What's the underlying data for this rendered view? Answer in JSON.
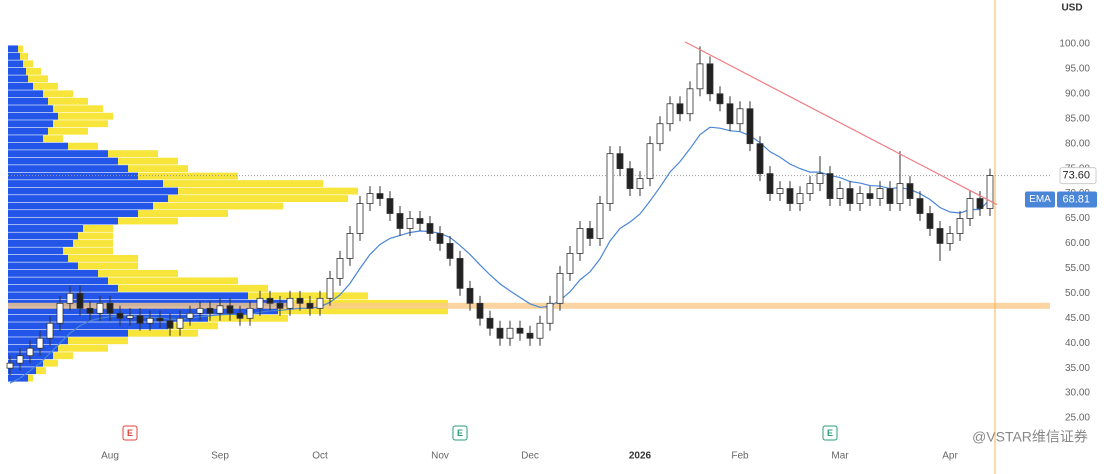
{
  "chart_data": {
    "type": "candlestick",
    "currency": "USD",
    "watermark": "@VSTAR维信证券",
    "categories": [
      null,
      null,
      null,
      null,
      null,
      null,
      null,
      null,
      null,
      null,
      "Aug",
      null,
      null,
      null,
      null,
      null,
      null,
      null,
      null,
      null,
      null,
      "Sep",
      null,
      null,
      null,
      null,
      null,
      null,
      null,
      null,
      null,
      "Oct",
      null,
      null,
      null,
      null,
      null,
      null,
      null,
      null,
      null,
      null,
      null,
      "Nov",
      null,
      null,
      null,
      null,
      null,
      null,
      null,
      null,
      "Dec",
      null,
      null,
      null,
      null,
      null,
      null,
      null,
      null,
      null,
      null,
      "2026",
      null,
      null,
      null,
      null,
      null,
      null,
      null,
      null,
      null,
      "Feb",
      null,
      null,
      null,
      null,
      null,
      null,
      null,
      null,
      null,
      "Mar",
      null,
      null,
      null,
      null,
      null,
      null,
      null,
      null,
      null,
      null,
      "Apr",
      null,
      null,
      null,
      null
    ],
    "open": [
      35,
      36,
      37.5,
      39,
      41,
      44,
      48,
      50,
      47,
      46,
      48,
      46,
      45,
      45.5,
      44,
      45,
      44.5,
      43,
      45,
      46,
      47,
      46,
      47.5,
      46,
      45,
      47,
      49,
      48,
      47,
      49,
      48,
      47,
      49,
      53,
      57,
      62,
      68,
      70,
      69,
      66,
      63,
      65,
      64,
      62,
      60,
      57,
      51,
      48,
      45,
      43,
      41,
      43,
      42,
      41,
      44,
      48,
      54,
      58,
      63,
      61,
      68,
      78,
      75,
      71,
      73,
      80,
      84,
      88,
      86,
      91,
      96,
      90,
      88,
      84,
      87,
      80,
      74,
      70,
      71,
      68,
      70,
      72,
      74,
      69,
      71,
      68,
      70,
      69,
      71,
      68,
      72,
      69,
      66,
      63,
      60,
      62,
      65,
      69,
      67
    ],
    "high": [
      37.5,
      39,
      40.5,
      42.5,
      45.5,
      49.5,
      51.5,
      51.5,
      48.5,
      49.5,
      49.5,
      47.5,
      47,
      47,
      46.5,
      46.5,
      46,
      46.5,
      47.5,
      48.5,
      48.5,
      49,
      49,
      47.5,
      48.5,
      50.5,
      50.5,
      49.5,
      50.5,
      50.5,
      49.5,
      50.5,
      54.5,
      58.5,
      63.5,
      69.5,
      71.5,
      71.5,
      70.5,
      67.5,
      66.5,
      66.5,
      65.5,
      63.5,
      61.5,
      58.5,
      52.5,
      49.5,
      46.5,
      44.5,
      44.5,
      44.5,
      43.5,
      45.5,
      49.5,
      55.5,
      59.5,
      64.5,
      64.5,
      69.5,
      79.5,
      79.5,
      76.5,
      74.5,
      81.5,
      85.5,
      89.5,
      89.5,
      92.5,
      99.5,
      97.5,
      91.5,
      89.5,
      88.5,
      88.5,
      81.5,
      75.5,
      72.5,
      72.5,
      71.5,
      73.5,
      77.5,
      75.5,
      72.5,
      72.5,
      71.5,
      71.5,
      72.5,
      72.5,
      78.5,
      73.5,
      70.5,
      67.5,
      64.5,
      63.5,
      66.5,
      70.5,
      70.5,
      75
    ],
    "low": [
      33.5,
      34.5,
      36,
      37.5,
      39.5,
      42.5,
      46.5,
      45.5,
      44.5,
      44.5,
      44.5,
      43.5,
      43.5,
      42.5,
      42.5,
      43,
      41.5,
      41.5,
      43.5,
      44.5,
      44.5,
      44.5,
      44.5,
      43.5,
      43.5,
      45.5,
      46.5,
      45.5,
      45.5,
      46.5,
      45.5,
      45.5,
      47.5,
      51.5,
      55.5,
      60.5,
      66.5,
      67.5,
      64.5,
      61.5,
      61.5,
      62.5,
      60.5,
      58.5,
      55.5,
      49.5,
      46.5,
      43.5,
      41.5,
      39.5,
      39.5,
      40.5,
      39.5,
      39.5,
      42.5,
      46.5,
      52.5,
      56.5,
      59.5,
      59.5,
      66.5,
      73.5,
      69.5,
      69.5,
      71.5,
      78.5,
      82.5,
      84.5,
      84.5,
      89.5,
      88.5,
      86.5,
      82.5,
      82.5,
      78.5,
      72.5,
      68.5,
      68.5,
      66.5,
      66.5,
      68.5,
      70.5,
      67.5,
      67.5,
      66.5,
      66.5,
      67.5,
      67.5,
      66.5,
      66.5,
      67.5,
      64.5,
      61.5,
      56.5,
      58.5,
      60.5,
      63.5,
      65.5,
      65.5
    ],
    "close": [
      36,
      37.5,
      39,
      41,
      44,
      48,
      50,
      47,
      46,
      48,
      46,
      45,
      45.5,
      44,
      45,
      44.5,
      43,
      45,
      46,
      47,
      46,
      47.5,
      46,
      45,
      47,
      49,
      48,
      47,
      49,
      48,
      47,
      49,
      53,
      57,
      62,
      68,
      70,
      69,
      66,
      63,
      65,
      64,
      62,
      60,
      57,
      51,
      48,
      45,
      43,
      41,
      43,
      42,
      41,
      44,
      48,
      54,
      58,
      63,
      61,
      68,
      78,
      75,
      71,
      73,
      80,
      84,
      88,
      86,
      91,
      96,
      90,
      88,
      84,
      87,
      80,
      74,
      70,
      71,
      68,
      70,
      72,
      74,
      69,
      71,
      68,
      70,
      69,
      71,
      68,
      72,
      69,
      66,
      63,
      60,
      62,
      65,
      69,
      67,
      73.6
    ],
    "last_price_label": "73.60",
    "up_color": "#ffffff",
    "down_color": "#222222",
    "wick_color": "#333333",
    "ema": {
      "name": "EMA",
      "color": "#4a86d8",
      "values": [
        32,
        33,
        34.5,
        36,
        38,
        40,
        42,
        43.5,
        44.5,
        45,
        45.3,
        45.5,
        45.5,
        45.3,
        45.2,
        45.1,
        44.8,
        44.8,
        45,
        45.3,
        45.5,
        45.7,
        45.8,
        45.7,
        45.8,
        46.2,
        46.5,
        46.6,
        46.8,
        47,
        47,
        47.3,
        48.2,
        49.7,
        52,
        55,
        57.8,
        59.8,
        61,
        61.6,
        62.2,
        62.5,
        62.4,
        62,
        61.2,
        59.6,
        57.8,
        55.7,
        53.7,
        51.9,
        50.5,
        49.2,
        47.9,
        47.2,
        47.4,
        48.6,
        50.3,
        52.7,
        54.3,
        56.9,
        60.5,
        63,
        64.3,
        65.9,
        68.5,
        71.3,
        74.3,
        76.4,
        79,
        81.8,
        83.3,
        83.1,
        82.6,
        82.4,
        81.6,
        80.2,
        78.4,
        77.3,
        75.9,
        75,
        74.3,
        74.3,
        73.6,
        73.2,
        72.4,
        72.1,
        71.6,
        71.5,
        71,
        71.2,
        70.8,
        70,
        68.8,
        67.2,
        66.3,
        66.1,
        66.8,
        66.8,
        68.81
      ]
    },
    "trendline": {
      "color": "#f07c82",
      "start": [
        67.5,
        100.4
      ],
      "end": [
        98.7,
        67.8
      ]
    },
    "level": {
      "value": 47.5,
      "color": "#f9c98a"
    },
    "volume_profile": {
      "prices": [
        33,
        34.5,
        36,
        37.5,
        39,
        40.5,
        42,
        43.5,
        45,
        46.5,
        48,
        49.5,
        51,
        52.5,
        54,
        55.5,
        57,
        58.5,
        60,
        61.5,
        63,
        64.5,
        66,
        67.5,
        69,
        70.5,
        72,
        73.5,
        75,
        76.5,
        78,
        79.5,
        81,
        82.5,
        84,
        85.5,
        87,
        88.5,
        90,
        91.5,
        93,
        94.5,
        96,
        97.5,
        99
      ],
      "blue": [
        20,
        28,
        35,
        45,
        50,
        60,
        120,
        160,
        200,
        270,
        280,
        240,
        110,
        100,
        90,
        70,
        60,
        55,
        65,
        70,
        75,
        110,
        130,
        145,
        160,
        170,
        155,
        130,
        120,
        110,
        100,
        60,
        35,
        40,
        45,
        50,
        45,
        40,
        35,
        25,
        20,
        18,
        15,
        12,
        10
      ],
      "yellow": [
        5,
        10,
        15,
        20,
        50,
        60,
        70,
        50,
        80,
        170,
        160,
        120,
        150,
        130,
        80,
        60,
        70,
        50,
        40,
        35,
        30,
        60,
        90,
        130,
        180,
        180,
        160,
        100,
        60,
        60,
        50,
        30,
        20,
        40,
        55,
        55,
        50,
        40,
        30,
        25,
        20,
        15,
        10,
        8,
        5
      ],
      "blue_color": "#2255e8",
      "yellow_color": "#f7e53b"
    },
    "events": [
      {
        "label": "E",
        "index": 12,
        "color": "#e0433b"
      },
      {
        "label": "E",
        "index": 45,
        "color": "#2a9d78"
      },
      {
        "label": "E",
        "index": 82,
        "color": "#2a9d78"
      }
    ],
    "ylim": [
      20.6,
      108.8
    ],
    "yticks": [
      {
        "value": 100,
        "label": "100.00"
      },
      {
        "value": 95,
        "label": "95.00"
      },
      {
        "value": 90,
        "label": "90.00"
      },
      {
        "value": 85,
        "label": "85.00"
      },
      {
        "value": 80,
        "label": "80.00"
      },
      {
        "value": 75,
        "label": "75.00"
      },
      {
        "value": 70,
        "label": "70.00"
      },
      {
        "value": 65,
        "label": "65.00"
      },
      {
        "value": 60,
        "label": "60.00"
      },
      {
        "value": 55,
        "label": "55.00"
      },
      {
        "value": 50,
        "label": "50.00"
      },
      {
        "value": 45,
        "label": "45.00"
      },
      {
        "value": 40,
        "label": "40.00"
      },
      {
        "value": 35,
        "label": "35.00"
      },
      {
        "value": 30,
        "label": "30.00"
      },
      {
        "value": 25,
        "label": "25.00"
      }
    ]
  }
}
